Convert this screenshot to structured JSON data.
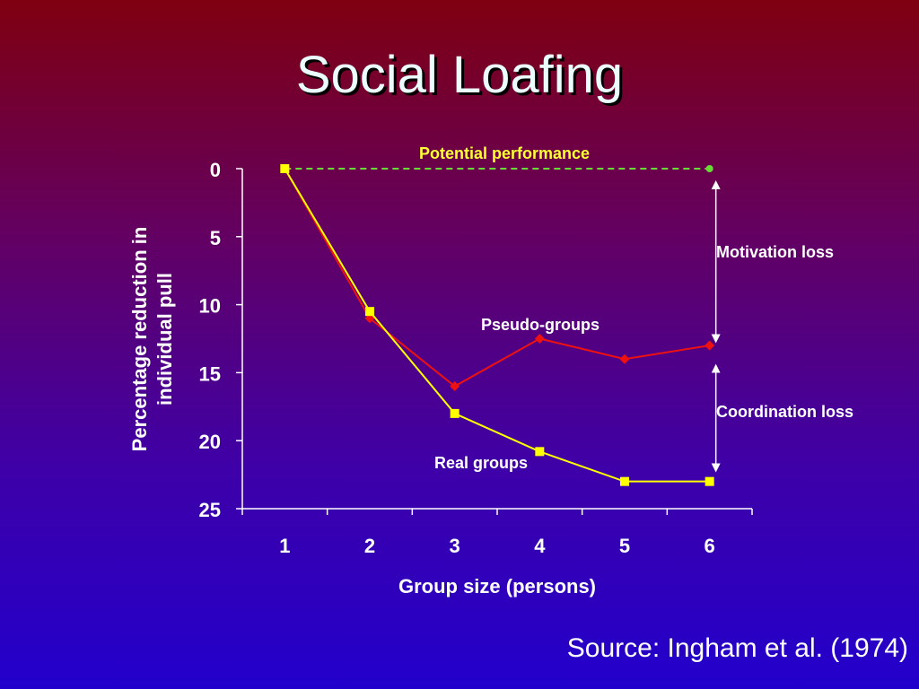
{
  "slide": {
    "title": "Social Loafing",
    "source": "Source: Ingham et al. (1974)"
  },
  "chart_data": {
    "type": "line",
    "xlabel": "Group size (persons)",
    "ylabel": "Percentage reduction in individual pull",
    "x": [
      1,
      2,
      3,
      4,
      5,
      6
    ],
    "xticks": [
      "1",
      "2",
      "3",
      "4",
      "5",
      "6"
    ],
    "yticks": [
      "0",
      "5",
      "10",
      "15",
      "20",
      "25"
    ],
    "ylim": [
      0,
      25
    ],
    "y_axis_inverted": true,
    "grid": false,
    "series": [
      {
        "name": "Potential performance",
        "values": [
          0,
          null,
          null,
          null,
          null,
          0
        ],
        "color": "#66dd33",
        "style": "dashed"
      },
      {
        "name": "Pseudo-groups",
        "values": [
          0,
          11,
          16,
          12.5,
          14,
          13
        ],
        "color": "#ee1111",
        "marker": "diamond"
      },
      {
        "name": "Real groups",
        "values": [
          0,
          10.5,
          18,
          20.8,
          23,
          23
        ],
        "color": "#ffff00",
        "marker": "square"
      }
    ],
    "annotations": [
      {
        "text": "Motivation loss",
        "x": 6,
        "from": 0,
        "to": 12.5
      },
      {
        "text": "Coordination loss",
        "x": 6,
        "from": 13.5,
        "to": 22
      }
    ]
  }
}
